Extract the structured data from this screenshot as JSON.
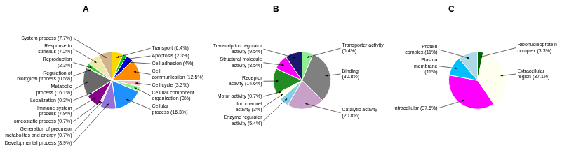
{
  "chart_data": [
    {
      "type": "pie",
      "title": "A",
      "categories": [
        "Transport (6.4%)",
        "Apoptosis (2.3%)",
        "Cell adhesion (4%)",
        "Cell\ncommunication (12.5%)",
        "Cell cycle (3.3%)",
        "Cellular component\norganization (3%)",
        "Cellular\nprocess (16.3%)",
        "Developmental process (8.9%)",
        "Generation of precursor\nmetabolites and energy (0.7%)",
        "Homeostatic process (0.7%)",
        "Immune system\nprocess (7.9%)",
        "Localization (0.3%)",
        "Metabolic\nprocess (16.1%)",
        "Regulation of\nbiological process (0.5%)",
        "Reproduction\n(2.3%)",
        "Response to\nstimulus (7.2%)",
        "System process (7.7%)"
      ],
      "values": [
        6.4,
        2.3,
        4.0,
        12.5,
        3.3,
        3.0,
        16.3,
        8.9,
        0.7,
        0.7,
        7.9,
        0.3,
        16.1,
        0.5,
        2.3,
        7.2,
        7.7
      ],
      "colors": [
        "#FFD700",
        "#00CC00",
        "#0000EE",
        "#FF8C00",
        "#FFB6C1",
        "#90EE90",
        "#1E90FF",
        "#9370DB",
        "#A9A9A9",
        "#808080",
        "#8B008B",
        "#00CED1",
        "#696969",
        "#006400",
        "#32CD32",
        "#EEE8AA",
        "#D2B48C"
      ]
    },
    {
      "type": "pie",
      "title": "B",
      "categories": [
        "Transporter activity\n(6.4%)",
        "Binding\n(30.8%)",
        "Catalytic activity\n(20.8%)",
        "Enzyme regulator\nactivity (5.4%)",
        "Ion channel\nactivity (3%)",
        "Motor activity (0.7%)",
        "Receptor\nactivity (14.6%)",
        "Structural molecule\nactivity (8.5%)",
        "Transcription regulator\nactivity (9.5%)"
      ],
      "values": [
        6.4,
        30.8,
        20.8,
        5.4,
        3.0,
        0.7,
        14.6,
        8.5,
        9.5
      ],
      "colors": [
        "#90EE90",
        "#808080",
        "#C8A0C8",
        "#87CEEB",
        "#FFFFE0",
        "#FFD700",
        "#228B22",
        "#FF00FF",
        "#191970"
      ]
    },
    {
      "type": "pie",
      "title": "C",
      "categories": [
        "Ribonucleoprotein\ncomplex (3.3%)",
        "Extracellular\nregion (37.1%)",
        "Intracellular (37.6%)",
        "Plasma\nmembrane\n(11%)",
        "Protein\ncomplex (11%)"
      ],
      "values": [
        3.3,
        37.1,
        37.6,
        11.0,
        11.0
      ],
      "colors": [
        "#006400",
        "#FFFFF0",
        "#FF00FF",
        "#00BFFF",
        "#ADD8E6"
      ]
    }
  ]
}
